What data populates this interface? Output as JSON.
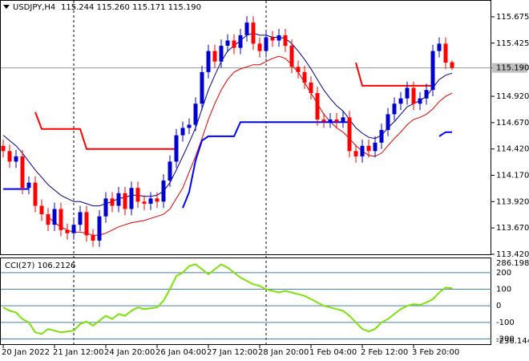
{
  "chart_data": [
    {
      "type": "candlestick",
      "title": "USDJPY,H4",
      "subtitle": "115.244 115.260 115.171 115.190",
      "categories": [
        "20 Jan 2022",
        null,
        null,
        null,
        null,
        null,
        null,
        null,
        "21 Jan 12:00",
        null,
        null,
        null,
        null,
        null,
        null,
        null,
        "24 Jan 20:00",
        null,
        null,
        null,
        null,
        null,
        null,
        null,
        "26 Jan 04:00",
        null,
        null,
        null,
        null,
        null,
        null,
        null,
        "27 Jan 12:00",
        null,
        null,
        null,
        null,
        null,
        null,
        null,
        "28 Jan 20:00",
        null,
        null,
        null,
        null,
        null,
        null,
        null,
        "1 Feb 04:00",
        null,
        null,
        null,
        null,
        null,
        null,
        null,
        "2 Feb 12:00",
        null,
        null,
        null,
        null,
        null,
        null,
        null,
        "3 Feb 20:00",
        null,
        null,
        null,
        null,
        null,
        null
      ],
      "open": [
        114.45,
        114.4,
        114.3,
        114.35,
        114.05,
        114.1,
        113.88,
        113.8,
        113.7,
        113.85,
        113.65,
        113.62,
        113.7,
        113.82,
        113.6,
        113.55,
        113.78,
        113.95,
        113.88,
        114.0,
        113.85,
        114.05,
        113.92,
        113.9,
        113.95,
        113.92,
        114.12,
        114.3,
        114.55,
        114.62,
        114.65,
        114.85,
        115.15,
        115.35,
        115.25,
        115.4,
        115.45,
        115.38,
        115.5,
        115.62,
        115.42,
        115.35,
        115.48,
        115.45,
        115.5,
        115.4,
        115.2,
        115.15,
        115.05,
        114.95,
        114.7,
        114.68,
        114.7,
        114.68,
        114.72,
        114.4,
        114.35,
        114.45,
        114.4,
        114.48,
        114.6,
        114.75,
        114.85,
        114.9,
        115.0,
        114.85,
        114.9,
        114.98,
        115.35,
        115.42,
        115.244
      ],
      "high": [
        114.51,
        114.46,
        114.41,
        114.41,
        114.16,
        114.16,
        113.94,
        113.86,
        113.91,
        113.91,
        113.71,
        113.76,
        113.88,
        113.88,
        113.66,
        113.84,
        114.01,
        114.01,
        114.06,
        114.06,
        114.11,
        114.11,
        113.98,
        114.01,
        114.01,
        114.18,
        114.36,
        114.61,
        114.68,
        114.71,
        114.91,
        115.21,
        115.41,
        115.41,
        115.46,
        115.51,
        115.51,
        115.56,
        115.68,
        115.68,
        115.48,
        115.54,
        115.54,
        115.56,
        115.56,
        115.46,
        115.26,
        115.21,
        115.11,
        115.01,
        114.76,
        114.76,
        114.76,
        114.78,
        114.78,
        114.46,
        114.51,
        114.51,
        114.54,
        114.66,
        114.81,
        114.91,
        114.96,
        115.06,
        115.06,
        114.96,
        115.04,
        115.41,
        115.48,
        115.48,
        115.26
      ],
      "low": [
        114.34,
        114.24,
        114.24,
        113.99,
        113.99,
        113.82,
        113.74,
        113.64,
        113.64,
        113.59,
        113.56,
        113.56,
        113.64,
        113.54,
        113.49,
        113.49,
        113.72,
        113.82,
        113.82,
        113.79,
        113.79,
        113.86,
        113.84,
        113.84,
        113.86,
        113.86,
        114.06,
        114.24,
        114.49,
        114.56,
        114.59,
        114.79,
        115.09,
        115.19,
        115.19,
        115.34,
        115.32,
        115.32,
        115.44,
        115.36,
        115.29,
        115.29,
        115.39,
        115.39,
        115.34,
        115.14,
        115.09,
        114.99,
        114.89,
        114.64,
        114.62,
        114.62,
        114.62,
        114.62,
        114.34,
        114.29,
        114.29,
        114.34,
        114.34,
        114.42,
        114.54,
        114.69,
        114.79,
        114.84,
        114.79,
        114.79,
        114.84,
        114.92,
        115.29,
        115.18,
        115.171
      ],
      "close": [
        114.4,
        114.3,
        114.35,
        114.05,
        114.1,
        113.88,
        113.8,
        113.7,
        113.85,
        113.65,
        113.62,
        113.7,
        113.82,
        113.6,
        113.55,
        113.78,
        113.95,
        113.88,
        114.0,
        113.85,
        114.05,
        113.92,
        113.9,
        113.95,
        113.92,
        114.12,
        114.3,
        114.55,
        114.62,
        114.65,
        114.85,
        115.15,
        115.35,
        115.25,
        115.4,
        115.45,
        115.38,
        115.5,
        115.62,
        115.42,
        115.35,
        115.48,
        115.45,
        115.5,
        115.4,
        115.2,
        115.15,
        115.05,
        114.95,
        114.7,
        114.68,
        114.7,
        114.68,
        114.72,
        114.4,
        114.35,
        114.45,
        114.4,
        114.48,
        114.6,
        114.75,
        114.85,
        114.9,
        115.0,
        114.85,
        114.9,
        114.98,
        115.35,
        115.42,
        115.24,
        115.19
      ],
      "up_color": "#0000cd",
      "down_color": "#ff0000",
      "series": [
        {
          "color": "#00008b",
          "values": [
            114.55,
            114.5,
            114.45,
            114.38,
            114.3,
            114.22,
            114.15,
            114.08,
            114.03,
            113.98,
            113.95,
            113.92,
            113.92,
            113.9,
            113.88,
            113.88,
            113.9,
            113.92,
            113.95,
            113.96,
            113.98,
            113.98,
            113.97,
            113.97,
            113.98,
            114.02,
            114.1,
            114.22,
            114.35,
            114.48,
            114.62,
            114.8,
            114.98,
            115.12,
            115.25,
            115.35,
            115.4,
            115.45,
            115.5,
            115.52,
            115.5,
            115.5,
            115.48,
            115.48,
            115.47,
            115.42,
            115.35,
            115.27,
            115.18,
            115.08,
            114.98,
            114.9,
            114.83,
            114.78,
            114.7,
            114.62,
            114.57,
            114.53,
            114.52,
            114.55,
            114.62,
            114.68,
            114.75,
            114.82,
            114.85,
            114.88,
            114.92,
            115.0,
            115.08,
            115.12,
            115.14
          ]
        },
        {
          "color": "#dd0000",
          "values": [
            null,
            null,
            null,
            null,
            null,
            null,
            null,
            113.78,
            113.72,
            113.68,
            113.65,
            113.63,
            113.63,
            113.62,
            113.6,
            113.6,
            113.62,
            113.65,
            113.68,
            113.7,
            113.72,
            113.73,
            113.74,
            113.76,
            113.78,
            113.8,
            113.85,
            113.95,
            114.05,
            114.2,
            114.35,
            114.52,
            114.7,
            114.85,
            114.98,
            115.08,
            115.15,
            115.18,
            115.2,
            115.22,
            115.22,
            115.25,
            115.28,
            115.3,
            115.28,
            115.22,
            115.15,
            115.05,
            114.95,
            114.85,
            114.75,
            114.68,
            114.62,
            114.58,
            114.52,
            114.45,
            114.4,
            114.36,
            114.35,
            114.38,
            114.45,
            114.52,
            114.58,
            114.65,
            114.7,
            114.72,
            114.75,
            114.8,
            114.87,
            114.92,
            114.95
          ]
        },
        {
          "color": "#ff0000",
          "width": 2,
          "values": [
            null,
            null,
            null,
            null,
            null,
            114.77,
            114.61,
            114.61,
            114.61,
            114.61,
            114.61,
            114.61,
            114.61,
            114.42,
            114.42,
            114.42,
            114.42,
            114.42,
            114.42,
            114.42,
            114.42,
            114.42,
            114.42,
            114.42,
            114.42,
            114.42,
            114.42,
            114.42,
            null,
            null,
            null,
            null,
            null,
            null,
            null,
            null,
            null,
            null,
            null,
            null,
            null,
            null,
            null,
            null,
            null,
            null,
            null,
            null,
            null,
            null,
            null,
            null,
            null,
            null,
            null,
            115.24,
            115.02,
            115.02,
            115.02,
            115.02,
            115.02,
            115.02,
            115.02,
            115.02,
            115.02,
            115.02,
            115.02,
            115.02,
            null,
            null,
            null
          ]
        },
        {
          "color": "#0000ff",
          "width": 2,
          "values": [
            114.04,
            114.04,
            114.04,
            114.04,
            114.04,
            null,
            null,
            null,
            null,
            null,
            null,
            null,
            null,
            null,
            null,
            null,
            null,
            null,
            null,
            null,
            null,
            null,
            null,
            null,
            null,
            null,
            null,
            null,
            113.86,
            114.01,
            114.31,
            114.5,
            114.54,
            114.54,
            114.54,
            114.54,
            114.54,
            114.675,
            114.675,
            114.675,
            114.675,
            114.675,
            114.675,
            114.675,
            114.675,
            114.675,
            114.675,
            114.675,
            114.675,
            114.675,
            114.675,
            114.675,
            114.675,
            114.675,
            114.675,
            null,
            null,
            null,
            null,
            null,
            null,
            null,
            null,
            null,
            null,
            null,
            null,
            null,
            114.54,
            114.58,
            114.58
          ]
        }
      ],
      "last_price": {
        "value": 115.19,
        "label": "115.190"
      },
      "ylim": [
        113.412,
        115.827
      ],
      "yticks": [
        115.675,
        115.425,
        {
          "value": 115.19,
          "label": "115.190"
        },
        {
          "value": 114.92,
          "label": "114.920"
        },
        {
          "value": 114.67,
          "label": "114.670"
        },
        {
          "value": 114.42,
          "label": "114.420"
        },
        {
          "value": 114.17,
          "label": "114.170"
        },
        {
          "value": 113.92,
          "label": "113.920"
        },
        {
          "value": 113.67,
          "label": "113.670"
        },
        {
          "value": 113.42,
          "label": "113.420"
        }
      ]
    },
    {
      "type": "line",
      "title": "CCI(27) 106.2126",
      "color": "#7fe00f",
      "values": [
        -10,
        -30,
        -40,
        -80,
        -100,
        -160,
        -170,
        -140,
        -150,
        -160,
        -155,
        -150,
        -110,
        -95,
        -120,
        -90,
        -60,
        -80,
        -50,
        -60,
        -30,
        -10,
        -20,
        -15,
        -10,
        30,
        100,
        180,
        200,
        240,
        250,
        220,
        190,
        220,
        250,
        230,
        200,
        170,
        150,
        130,
        120,
        100,
        90,
        80,
        90,
        80,
        70,
        60,
        40,
        20,
        0,
        -10,
        -20,
        -30,
        -60,
        -100,
        -140,
        -155,
        -140,
        -100,
        -80,
        -50,
        -20,
        0,
        10,
        5,
        20,
        40,
        80,
        110,
        106.2126
      ],
      "ylim": [
        -236.1448,
        286.1983
      ],
      "yticks": [
        200,
        100,
        0,
        -100,
        -200
      ],
      "level_color": "#4a7fa8"
    }
  ]
}
